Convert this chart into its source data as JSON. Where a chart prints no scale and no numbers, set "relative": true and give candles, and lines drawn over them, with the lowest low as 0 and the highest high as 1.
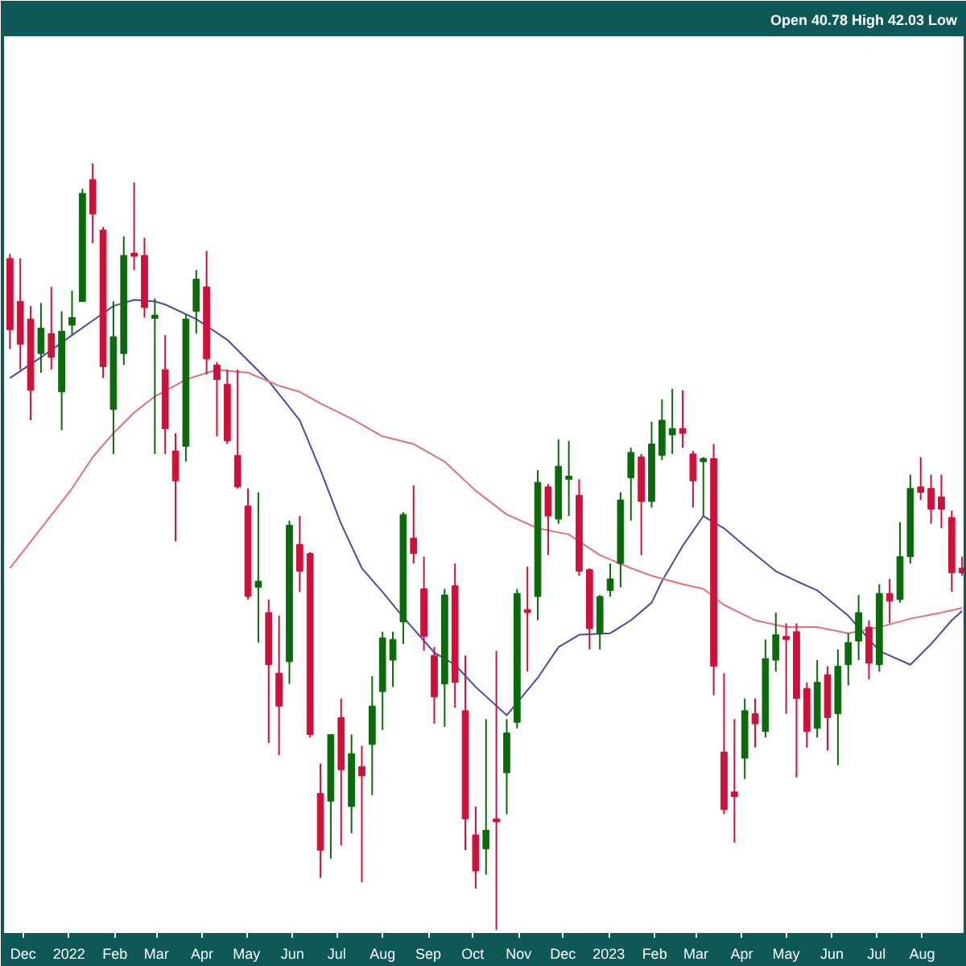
{
  "chart_data": {
    "type": "candlestick",
    "relative": true,
    "annotations": [
      "Open 40.78 High 42.03 Low"
    ],
    "x": [
      "2021-11-22",
      "2021-11-29",
      "2021-12-06",
      "2021-12-13",
      "2021-12-20",
      "2021-12-27",
      "2022-01-03",
      "2022-01-10",
      "2022-01-17",
      "2022-01-24",
      "2022-01-31",
      "2022-02-07",
      "2022-02-14",
      "2022-02-21",
      "2022-02-28",
      "2022-03-07",
      "2022-03-14",
      "2022-03-21",
      "2022-03-28",
      "2022-04-04",
      "2022-04-11",
      "2022-04-18",
      "2022-04-25",
      "2022-05-02",
      "2022-05-09",
      "2022-05-16",
      "2022-05-23",
      "2022-05-30",
      "2022-06-06",
      "2022-06-13",
      "2022-06-20",
      "2022-06-27",
      "2022-07-04",
      "2022-07-11",
      "2022-07-18",
      "2022-07-25",
      "2022-08-01",
      "2022-08-08",
      "2022-08-15",
      "2022-08-22",
      "2022-08-29",
      "2022-09-05",
      "2022-09-12",
      "2022-09-19",
      "2022-09-26",
      "2022-10-03",
      "2022-10-10",
      "2022-10-17",
      "2022-10-24",
      "2022-10-31",
      "2022-11-07",
      "2022-11-14",
      "2022-11-21",
      "2022-11-28",
      "2022-12-05",
      "2022-12-12",
      "2022-12-19",
      "2022-12-26",
      "2023-01-02",
      "2023-01-09",
      "2023-01-16",
      "2023-01-23",
      "2023-01-30",
      "2023-02-06",
      "2023-02-13",
      "2023-02-20",
      "2023-02-27",
      "2023-03-06",
      "2023-03-13",
      "2023-03-20",
      "2023-03-27",
      "2023-04-03",
      "2023-04-10",
      "2023-04-17",
      "2023-04-24",
      "2023-05-01",
      "2023-05-08",
      "2023-05-15",
      "2023-05-22",
      "2023-05-29",
      "2023-06-05",
      "2023-06-12",
      "2023-06-19",
      "2023-06-26",
      "2023-07-03",
      "2023-07-10",
      "2023-07-17",
      "2023-07-24",
      "2023-07-31",
      "2023-08-07",
      "2023-08-14",
      "2023-08-21",
      "2023-08-28"
    ],
    "ohlc": [
      [
        0.876,
        0.882,
        0.758,
        0.783
      ],
      [
        0.82,
        0.876,
        0.731,
        0.764
      ],
      [
        0.797,
        0.814,
        0.665,
        0.704
      ],
      [
        0.752,
        0.818,
        0.727,
        0.785
      ],
      [
        0.778,
        0.839,
        0.731,
        0.747
      ],
      [
        0.702,
        0.807,
        0.652,
        0.781
      ],
      [
        0.789,
        0.834,
        0.776,
        0.799
      ],
      [
        0.82,
        0.967,
        0.82,
        0.961
      ],
      [
        0.979,
        1.0,
        0.896,
        0.934
      ],
      [
        0.913,
        0.917,
        0.72,
        0.735
      ],
      [
        0.679,
        0.82,
        0.621,
        0.774
      ],
      [
        0.752,
        0.905,
        0.737,
        0.88
      ],
      [
        0.882,
        0.975,
        0.861,
        0.88
      ],
      [
        0.88,
        0.903,
        0.799,
        0.812
      ],
      [
        0.799,
        0.824,
        0.621,
        0.801
      ],
      [
        0.731,
        0.776,
        0.621,
        0.654
      ],
      [
        0.625,
        0.648,
        0.507,
        0.586
      ],
      [
        0.631,
        0.803,
        0.611,
        0.797
      ],
      [
        0.807,
        0.861,
        0.778,
        0.849
      ],
      [
        0.839,
        0.886,
        0.725,
        0.745
      ],
      [
        0.737,
        0.741,
        0.644,
        0.718
      ],
      [
        0.712,
        0.731,
        0.634,
        0.638
      ],
      [
        0.619,
        0.731,
        0.576,
        0.578
      ],
      [
        0.553,
        0.576,
        0.431,
        0.435
      ],
      [
        0.447,
        0.571,
        0.375,
        0.455
      ],
      [
        0.414,
        0.431,
        0.244,
        0.346
      ],
      [
        0.335,
        0.41,
        0.228,
        0.292
      ],
      [
        0.35,
        0.534,
        0.321,
        0.528
      ],
      [
        0.503,
        0.54,
        0.441,
        0.468
      ],
      [
        0.491,
        0.493,
        0.251,
        0.255
      ],
      [
        0.178,
        0.217,
        0.068,
        0.104
      ],
      [
        0.168,
        0.255,
        0.093,
        0.255
      ],
      [
        0.277,
        0.302,
        0.11,
        0.209
      ],
      [
        0.161,
        0.255,
        0.126,
        0.23
      ],
      [
        0.213,
        0.24,
        0.062,
        0.201
      ],
      [
        0.242,
        0.331,
        0.176,
        0.292
      ],
      [
        0.311,
        0.389,
        0.261,
        0.381
      ],
      [
        0.352,
        0.389,
        0.317,
        0.379
      ],
      [
        0.402,
        0.545,
        0.373,
        0.542
      ],
      [
        0.511,
        0.58,
        0.478,
        0.491
      ],
      [
        0.445,
        0.487,
        0.364,
        0.383
      ],
      [
        0.358,
        0.369,
        0.269,
        0.304
      ],
      [
        0.321,
        0.445,
        0.265,
        0.437
      ],
      [
        0.449,
        0.478,
        0.29,
        0.323
      ],
      [
        0.286,
        0.358,
        0.104,
        0.145
      ],
      [
        0.124,
        0.161,
        0.054,
        0.077
      ],
      [
        0.106,
        0.275,
        0.072,
        0.13
      ],
      [
        0.145,
        0.364,
        0.0,
        0.141
      ],
      [
        0.205,
        0.275,
        0.151,
        0.257
      ],
      [
        0.271,
        0.445,
        0.263,
        0.439
      ],
      [
        0.418,
        0.474,
        0.337,
        0.414
      ],
      [
        0.435,
        0.6,
        0.404,
        0.584
      ],
      [
        0.578,
        0.582,
        0.489,
        0.54
      ],
      [
        0.536,
        0.64,
        0.53,
        0.605
      ],
      [
        0.588,
        0.638,
        0.54,
        0.592
      ],
      [
        0.567,
        0.588,
        0.462,
        0.468
      ],
      [
        0.47,
        0.472,
        0.366,
        0.393
      ],
      [
        0.387,
        0.437,
        0.366,
        0.435
      ],
      [
        0.443,
        0.478,
        0.435,
        0.458
      ],
      [
        0.478,
        0.571,
        0.447,
        0.561
      ],
      [
        0.59,
        0.629,
        0.534,
        0.623
      ],
      [
        0.617,
        0.621,
        0.489,
        0.559
      ],
      [
        0.559,
        0.663,
        0.551,
        0.634
      ],
      [
        0.619,
        0.692,
        0.613,
        0.665
      ],
      [
        0.646,
        0.706,
        0.621,
        0.654
      ],
      [
        0.654,
        0.704,
        0.629,
        0.648
      ],
      [
        0.621,
        0.625,
        0.551,
        0.586
      ],
      [
        0.611,
        0.617,
        0.54,
        0.615
      ],
      [
        0.615,
        0.634,
        0.306,
        0.344
      ],
      [
        0.232,
        0.335,
        0.151,
        0.157
      ],
      [
        0.18,
        0.275,
        0.114,
        0.174
      ],
      [
        0.224,
        0.302,
        0.197,
        0.286
      ],
      [
        0.282,
        0.302,
        0.238,
        0.269
      ],
      [
        0.259,
        0.379,
        0.251,
        0.354
      ],
      [
        0.352,
        0.414,
        0.337,
        0.385
      ],
      [
        0.383,
        0.4,
        0.282,
        0.379
      ],
      [
        0.389,
        0.4,
        0.199,
        0.302
      ],
      [
        0.315,
        0.323,
        0.238,
        0.259
      ],
      [
        0.263,
        0.352,
        0.251,
        0.323
      ],
      [
        0.333,
        0.344,
        0.234,
        0.277
      ],
      [
        0.282,
        0.366,
        0.215,
        0.344
      ],
      [
        0.346,
        0.387,
        0.319,
        0.375
      ],
      [
        0.377,
        0.437,
        0.352,
        0.414
      ],
      [
        0.395,
        0.404,
        0.327,
        0.348
      ],
      [
        0.346,
        0.451,
        0.337,
        0.439
      ],
      [
        0.439,
        0.458,
        0.4,
        0.429
      ],
      [
        0.431,
        0.532,
        0.427,
        0.487
      ],
      [
        0.487,
        0.594,
        0.478,
        0.576
      ],
      [
        0.578,
        0.617,
        0.561,
        0.571
      ],
      [
        0.576,
        0.594,
        0.53,
        0.549
      ],
      [
        0.565,
        0.594,
        0.524,
        0.549
      ],
      [
        0.538,
        0.547,
        0.441,
        0.466
      ],
      [
        0.472,
        0.487,
        0.462,
        0.466
      ]
    ],
    "colors": [
      "#d0103a",
      "#d0103a",
      "#d0103a",
      "#0b6b0b",
      "#d0103a",
      "#0b6b0b",
      "#0b6b0b",
      "#0b6b0b",
      "#d0103a",
      "#d0103a",
      "#0b6b0b",
      "#0b6b0b",
      "#d0103a",
      "#d0103a",
      "#0b6b0b",
      "#d0103a",
      "#d0103a",
      "#0b6b0b",
      "#0b6b0b",
      "#d0103a",
      "#d0103a",
      "#d0103a",
      "#d0103a",
      "#d0103a",
      "#0b6b0b",
      "#d0103a",
      "#d0103a",
      "#0b6b0b",
      "#d0103a",
      "#d0103a",
      "#d0103a",
      "#0b6b0b",
      "#d0103a",
      "#0b6b0b",
      "#d0103a",
      "#0b6b0b",
      "#0b6b0b",
      "#0b6b0b",
      "#0b6b0b",
      "#d0103a",
      "#d0103a",
      "#d0103a",
      "#0b6b0b",
      "#d0103a",
      "#d0103a",
      "#d0103a",
      "#0b6b0b",
      "#d0103a",
      "#0b6b0b",
      "#0b6b0b",
      "#d0103a",
      "#0b6b0b",
      "#d0103a",
      "#0b6b0b",
      "#0b6b0b",
      "#d0103a",
      "#d0103a",
      "#0b6b0b",
      "#0b6b0b",
      "#0b6b0b",
      "#0b6b0b",
      "#d0103a",
      "#0b6b0b",
      "#0b6b0b",
      "#0b6b0b",
      "#d0103a",
      "#d0103a",
      "#0b6b0b",
      "#d0103a",
      "#d0103a",
      "#d0103a",
      "#0b6b0b",
      "#d0103a",
      "#0b6b0b",
      "#0b6b0b",
      "#d0103a",
      "#d0103a",
      "#d0103a",
      "#0b6b0b",
      "#d0103a",
      "#0b6b0b",
      "#0b6b0b",
      "#0b6b0b",
      "#d0103a",
      "#0b6b0b",
      "#d0103a",
      "#0b6b0b",
      "#0b6b0b",
      "#d0103a",
      "#d0103a",
      "#d0103a",
      "#d0103a",
      "#d0103a"
    ],
    "series": [
      {
        "type": "line",
        "color": "#4a4aa8",
        "x": [
          "2021-11-22",
          "2021-12-13",
          "2022-01-03",
          "2022-01-17",
          "2022-01-31",
          "2022-02-14",
          "2022-02-28",
          "2022-03-07",
          "2022-03-28",
          "2022-04-18",
          "2022-05-16",
          "2022-06-06",
          "2022-06-20",
          "2022-07-04",
          "2022-07-18",
          "2022-08-01",
          "2022-08-15",
          "2022-09-05",
          "2022-09-19",
          "2022-10-03",
          "2022-10-24",
          "2022-11-14",
          "2022-11-28",
          "2022-12-12",
          "2023-01-02",
          "2023-01-16",
          "2023-01-30",
          "2023-02-06",
          "2023-02-20",
          "2023-03-06",
          "2023-03-20",
          "2023-04-03",
          "2023-04-24",
          "2023-05-08",
          "2023-05-22",
          "2023-06-12",
          "2023-07-03",
          "2023-07-24",
          "2023-08-07",
          "2023-08-21",
          "2023-08-28"
        ],
        "values": [
          0.72,
          0.747,
          0.776,
          0.795,
          0.814,
          0.822,
          0.82,
          0.816,
          0.797,
          0.77,
          0.716,
          0.665,
          0.6,
          0.53,
          0.472,
          0.441,
          0.408,
          0.362,
          0.346,
          0.317,
          0.28,
          0.329,
          0.369,
          0.385,
          0.387,
          0.404,
          0.427,
          0.455,
          0.501,
          0.54,
          0.524,
          0.501,
          0.468,
          0.455,
          0.443,
          0.41,
          0.364,
          0.346,
          0.373,
          0.404,
          0.416
        ]
      },
      {
        "type": "line",
        "color": "#e0707e",
        "x": [
          "2021-11-22",
          "2021-12-13",
          "2022-01-03",
          "2022-01-17",
          "2022-01-31",
          "2022-02-14",
          "2022-02-28",
          "2022-03-21",
          "2022-04-11",
          "2022-05-02",
          "2022-05-23",
          "2022-06-06",
          "2022-06-20",
          "2022-07-11",
          "2022-08-01",
          "2022-08-22",
          "2022-09-12",
          "2022-10-03",
          "2022-10-24",
          "2022-11-14",
          "2022-12-05",
          "2022-12-26",
          "2023-01-16",
          "2023-01-30",
          "2023-02-20",
          "2023-03-06",
          "2023-03-20",
          "2023-04-10",
          "2023-05-01",
          "2023-05-22",
          "2023-06-12",
          "2023-07-03",
          "2023-07-24",
          "2023-08-14",
          "2023-08-28"
        ],
        "values": [
          0.472,
          0.524,
          0.576,
          0.617,
          0.648,
          0.675,
          0.696,
          0.718,
          0.731,
          0.727,
          0.71,
          0.702,
          0.687,
          0.667,
          0.644,
          0.634,
          0.611,
          0.573,
          0.542,
          0.524,
          0.516,
          0.489,
          0.472,
          0.462,
          0.451,
          0.445,
          0.424,
          0.404,
          0.395,
          0.395,
          0.387,
          0.395,
          0.406,
          0.414,
          0.42
        ]
      }
    ],
    "xlim": [
      "2021-11-18",
      "2023-08-29"
    ],
    "xticks": [
      {
        "value": "2021-12-01",
        "label": "Dec"
      },
      {
        "value": "2022-01-01",
        "label": "2022"
      },
      {
        "value": "2022-02-01",
        "label": "Feb"
      },
      {
        "value": "2022-03-01",
        "label": "Mar"
      },
      {
        "value": "2022-04-01",
        "label": "Apr"
      },
      {
        "value": "2022-05-01",
        "label": "May"
      },
      {
        "value": "2022-06-01",
        "label": "Jun"
      },
      {
        "value": "2022-07-01",
        "label": "Jul"
      },
      {
        "value": "2022-08-01",
        "label": "Aug"
      },
      {
        "value": "2022-09-01",
        "label": "Sep"
      },
      {
        "value": "2022-10-01",
        "label": "Oct"
      },
      {
        "value": "2022-11-01",
        "label": "Nov"
      },
      {
        "value": "2022-12-01",
        "label": "Dec"
      },
      {
        "value": "2023-01-01",
        "label": "2023"
      },
      {
        "value": "2023-02-01",
        "label": "Feb"
      },
      {
        "value": "2023-03-01",
        "label": "Mar"
      },
      {
        "value": "2023-04-01",
        "label": "Apr"
      },
      {
        "value": "2023-05-01",
        "label": "May"
      },
      {
        "value": "2023-06-01",
        "label": "Jun"
      },
      {
        "value": "2023-07-01",
        "label": "Jul"
      },
      {
        "value": "2023-08-01",
        "label": "Aug"
      }
    ]
  }
}
